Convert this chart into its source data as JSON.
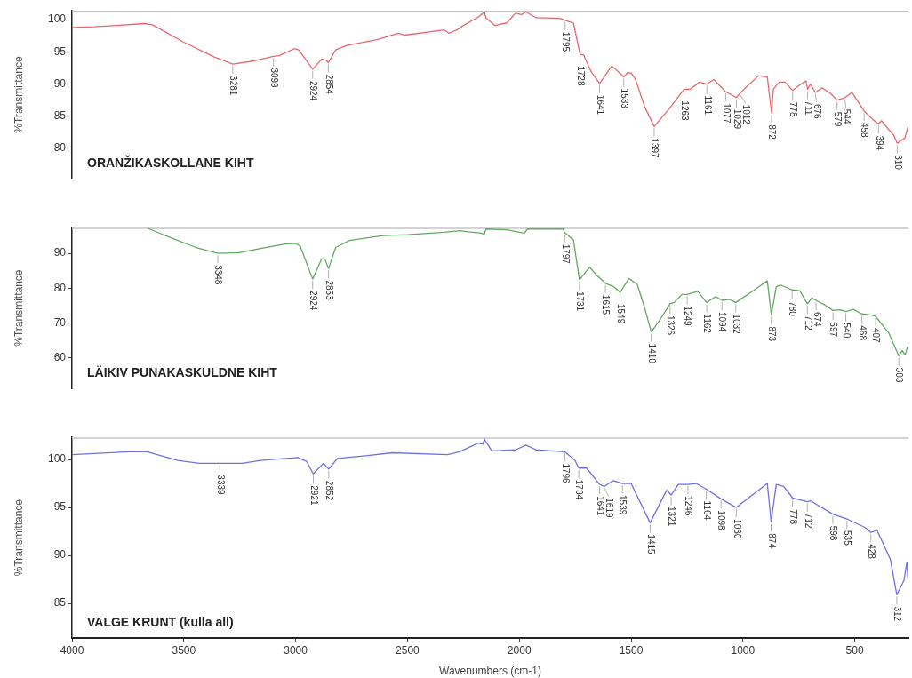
{
  "chart_data": [
    {
      "type": "line",
      "title": "ORANŽIKASKOLLANE KIHT",
      "ylabel": "%Transmittance",
      "color": "#e6686e",
      "tick_labels": "y",
      "xlim": [
        4000,
        260
      ],
      "ylim": [
        75.3,
        101.4
      ],
      "yticks": [
        80,
        85,
        90,
        95,
        100
      ],
      "x": [
        4000,
        3900,
        3800,
        3680,
        3640,
        3500,
        3364,
        3281,
        3185,
        3099,
        3074,
        3006,
        2986,
        2924,
        2883,
        2863,
        2854,
        2821,
        2772,
        2636,
        2541,
        2513,
        2335,
        2315,
        2279,
        2255,
        2184,
        2156,
        2149,
        2109,
        2056,
        2017,
        1990,
        1970,
        1925,
        1818,
        1795,
        1758,
        1728,
        1712,
        1680,
        1641,
        1587,
        1560,
        1533,
        1515,
        1500,
        1480,
        1440,
        1397,
        1329,
        1263,
        1235,
        1195,
        1161,
        1130,
        1077,
        1029,
        1012,
        983,
        930,
        891,
        872,
        864,
        838,
        812,
        778,
        740,
        718,
        711,
        698,
        676,
        646,
        610,
        579,
        544,
        513,
        490,
        458,
        420,
        394,
        380,
        350,
        325,
        310,
        290,
        276,
        262
      ],
      "values": [
        98.8,
        98.9,
        99.1,
        99.4,
        99.2,
        96.5,
        94.2,
        93.1,
        93.6,
        94.3,
        94.4,
        95.5,
        95.3,
        92.3,
        93.9,
        93.7,
        93.3,
        95.3,
        96.0,
        96.9,
        97.9,
        97.6,
        98.4,
        97.9,
        98.4,
        99.0,
        100.4,
        101.2,
        100.3,
        99.1,
        99.5,
        101.0,
        100.8,
        101.2,
        100.3,
        100.2,
        99.9,
        99.5,
        94.6,
        94.5,
        92.0,
        90.1,
        92.8,
        92.0,
        91.1,
        91.8,
        91.7,
        90.7,
        86.5,
        83.4,
        86.2,
        89.2,
        89.2,
        90.3,
        90.0,
        90.7,
        88.8,
        87.9,
        88.6,
        89.6,
        91.3,
        91.1,
        85.5,
        89.2,
        90.3,
        90.3,
        89.0,
        90.0,
        90.5,
        89.2,
        90.0,
        88.7,
        89.4,
        88.6,
        87.5,
        87.9,
        88.7,
        87.5,
        85.8,
        84.5,
        83.8,
        84.3,
        83.0,
        82.0,
        80.8,
        81.3,
        81.6,
        83.4
      ],
      "annotations": [
        {
          "text": "3281",
          "x": 3281,
          "y": 93.1
        },
        {
          "text": "3099",
          "x": 3099,
          "y": 94.3
        },
        {
          "text": "2924",
          "x": 2924,
          "y": 92.3
        },
        {
          "text": "2854",
          "x": 2854,
          "y": 93.3
        },
        {
          "text": "1795",
          "x": 1795,
          "y": 99.9
        },
        {
          "text": "1728",
          "x": 1728,
          "y": 94.6
        },
        {
          "text": "1641",
          "x": 1641,
          "y": 90.1
        },
        {
          "text": "1533",
          "x": 1533,
          "y": 91.1
        },
        {
          "text": "1397",
          "x": 1397,
          "y": 83.4
        },
        {
          "text": "1263",
          "x": 1263,
          "y": 89.2
        },
        {
          "text": "1161",
          "x": 1161,
          "y": 90.0
        },
        {
          "text": "1077",
          "x": 1077,
          "y": 88.8
        },
        {
          "text": "1029",
          "x": 1029,
          "y": 87.9
        },
        {
          "text": "1012",
          "x": 1012,
          "y": 88.6
        },
        {
          "text": "872",
          "x": 872,
          "y": 85.5
        },
        {
          "text": "778",
          "x": 778,
          "y": 89.0
        },
        {
          "text": "711",
          "x": 711,
          "y": 89.2
        },
        {
          "text": "676",
          "x": 676,
          "y": 88.7
        },
        {
          "text": "579",
          "x": 579,
          "y": 87.5
        },
        {
          "text": "544",
          "x": 544,
          "y": 87.9
        },
        {
          "text": "458",
          "x": 458,
          "y": 85.8
        },
        {
          "text": "394",
          "x": 394,
          "y": 83.8
        },
        {
          "text": "310",
          "x": 310,
          "y": 80.8
        }
      ]
    },
    {
      "type": "line",
      "title": "LÄIKIV PUNAKASKULDNE KIHT",
      "ylabel": "%Transmittance",
      "color": "#62a862",
      "tick_labels": "y",
      "xlim": [
        4000,
        260
      ],
      "ylim": [
        51.2,
        97.4
      ],
      "yticks": [
        60,
        70,
        80,
        90
      ],
      "x": [
        3660,
        3600,
        3555,
        3445,
        3348,
        3253,
        3157,
        3047,
        2999,
        2979,
        2924,
        2883,
        2869,
        2853,
        2821,
        2760,
        2609,
        2499,
        2335,
        2267,
        2211,
        2176,
        2156,
        2149,
        2056,
        1977,
        1964,
        1805,
        1797,
        1758,
        1731,
        1686,
        1650,
        1615,
        1580,
        1549,
        1510,
        1473,
        1440,
        1410,
        1370,
        1326,
        1307,
        1273,
        1249,
        1202,
        1162,
        1122,
        1094,
        1060,
        1032,
        960,
        891,
        873,
        851,
        831,
        780,
        746,
        712,
        692,
        674,
        640,
        597,
        565,
        540,
        506,
        468,
        430,
        407,
        347,
        320,
        303,
        288,
        275,
        262
      ],
      "values": [
        97.2,
        95.6,
        94.4,
        91.7,
        90.0,
        90.2,
        91.4,
        92.7,
        92.9,
        92.0,
        82.6,
        88.5,
        88.3,
        85.6,
        91.7,
        93.7,
        95.1,
        95.4,
        96.1,
        96.5,
        96.1,
        95.9,
        95.5,
        97.0,
        96.8,
        95.8,
        97.0,
        97.0,
        96.0,
        93.9,
        82.4,
        86.0,
        83.5,
        81.4,
        80.5,
        78.8,
        82.8,
        81.1,
        74.5,
        67.4,
        71.0,
        75.5,
        75.9,
        78.2,
        78.2,
        79.1,
        75.9,
        77.6,
        76.5,
        76.8,
        75.9,
        79.0,
        82.1,
        72.3,
        80.4,
        80.9,
        79.5,
        79.3,
        75.5,
        77.2,
        76.5,
        75.4,
        73.6,
        73.8,
        73.3,
        73.9,
        72.6,
        72.3,
        71.9,
        67.0,
        63.0,
        60.5,
        62.1,
        60.8,
        63.5
      ],
      "annotations": [
        {
          "text": "3348",
          "x": 3348,
          "y": 90.0
        },
        {
          "text": "2924",
          "x": 2924,
          "y": 82.6
        },
        {
          "text": "2853",
          "x": 2853,
          "y": 85.6
        },
        {
          "text": "1797",
          "x": 1797,
          "y": 96.0
        },
        {
          "text": "1731",
          "x": 1731,
          "y": 82.4
        },
        {
          "text": "1615",
          "x": 1615,
          "y": 81.4
        },
        {
          "text": "1549",
          "x": 1549,
          "y": 78.8
        },
        {
          "text": "1410",
          "x": 1410,
          "y": 67.4
        },
        {
          "text": "1326",
          "x": 1326,
          "y": 75.5
        },
        {
          "text": "1249",
          "x": 1249,
          "y": 78.2
        },
        {
          "text": "1162",
          "x": 1162,
          "y": 75.9
        },
        {
          "text": "1094",
          "x": 1094,
          "y": 76.5
        },
        {
          "text": "1032",
          "x": 1032,
          "y": 75.9
        },
        {
          "text": "873",
          "x": 873,
          "y": 72.3
        },
        {
          "text": "780",
          "x": 780,
          "y": 79.5
        },
        {
          "text": "712",
          "x": 712,
          "y": 75.5
        },
        {
          "text": "674",
          "x": 674,
          "y": 76.5
        },
        {
          "text": "597",
          "x": 597,
          "y": 73.6
        },
        {
          "text": "540",
          "x": 540,
          "y": 73.3
        },
        {
          "text": "468",
          "x": 468,
          "y": 72.6
        },
        {
          "text": "407",
          "x": 407,
          "y": 71.9
        },
        {
          "text": "303",
          "x": 303,
          "y": 60.5
        }
      ]
    },
    {
      "type": "line",
      "title": "VALGE KRUNT (kulla all)",
      "xlabel": "Wavenumbers (cm-1)",
      "ylabel": "%Transmittance",
      "color": "#7070e0",
      "xlim": [
        4000,
        260
      ],
      "xticks": [
        4000,
        3500,
        3000,
        2500,
        2000,
        1500,
        1000,
        500
      ],
      "ylim": [
        81.4,
        102.3
      ],
      "yticks": [
        85,
        90,
        95,
        100
      ],
      "x": [
        4000,
        3746,
        3664,
        3527,
        3431,
        3339,
        3239,
        3157,
        2992,
        2951,
        2921,
        2876,
        2852,
        2814,
        2677,
        2568,
        2321,
        2267,
        2184,
        2163,
        2156,
        2123,
        2017,
        1970,
        1924,
        1796,
        1751,
        1734,
        1699,
        1641,
        1619,
        1580,
        1539,
        1500,
        1415,
        1341,
        1321,
        1289,
        1246,
        1209,
        1164,
        1098,
        1030,
        891,
        874,
        851,
        818,
        778,
        712,
        698,
        598,
        535,
        453,
        428,
        400,
        341,
        312,
        280,
        267,
        262
      ],
      "values": [
        100.5,
        100.8,
        100.8,
        99.9,
        99.6,
        99.6,
        99.6,
        99.9,
        100.2,
        99.8,
        98.5,
        99.6,
        99.0,
        100.1,
        100.4,
        100.7,
        100.5,
        100.8,
        101.7,
        101.6,
        102.1,
        100.9,
        101.0,
        101.5,
        101.0,
        100.8,
        99.9,
        99.1,
        99.1,
        97.4,
        97.2,
        97.8,
        97.5,
        97.5,
        93.4,
        96.8,
        96.3,
        97.4,
        97.4,
        97.5,
        96.9,
        95.9,
        95.0,
        97.5,
        93.5,
        97.4,
        97.2,
        96.0,
        95.6,
        95.7,
        94.3,
        93.8,
        92.9,
        92.4,
        92.6,
        89.6,
        85.9,
        87.4,
        89.3,
        87.5
      ],
      "annotations": [
        {
          "text": "3339",
          "x": 3339,
          "y": 99.6
        },
        {
          "text": "2921",
          "x": 2921,
          "y": 98.5
        },
        {
          "text": "2852",
          "x": 2852,
          "y": 99.0
        },
        {
          "text": "1796",
          "x": 1796,
          "y": 100.8
        },
        {
          "text": "1734",
          "x": 1734,
          "y": 99.1
        },
        {
          "text": "1641",
          "x": 1641,
          "y": 97.4
        },
        {
          "text": "1619",
          "x": 1619,
          "y": 97.2
        },
        {
          "text": "1539",
          "x": 1539,
          "y": 97.5
        },
        {
          "text": "1415",
          "x": 1415,
          "y": 93.4
        },
        {
          "text": "1321",
          "x": 1321,
          "y": 96.3
        },
        {
          "text": "1246",
          "x": 1246,
          "y": 97.4
        },
        {
          "text": "1164",
          "x": 1164,
          "y": 96.9
        },
        {
          "text": "1098",
          "x": 1098,
          "y": 95.9
        },
        {
          "text": "1030",
          "x": 1030,
          "y": 95.0
        },
        {
          "text": "874",
          "x": 874,
          "y": 93.5
        },
        {
          "text": "778",
          "x": 778,
          "y": 96.0
        },
        {
          "text": "712",
          "x": 712,
          "y": 95.6
        },
        {
          "text": "598",
          "x": 598,
          "y": 94.3
        },
        {
          "text": "535",
          "x": 535,
          "y": 93.8
        },
        {
          "text": "428",
          "x": 428,
          "y": 92.4
        },
        {
          "text": "312",
          "x": 312,
          "y": 85.9
        }
      ]
    }
  ]
}
